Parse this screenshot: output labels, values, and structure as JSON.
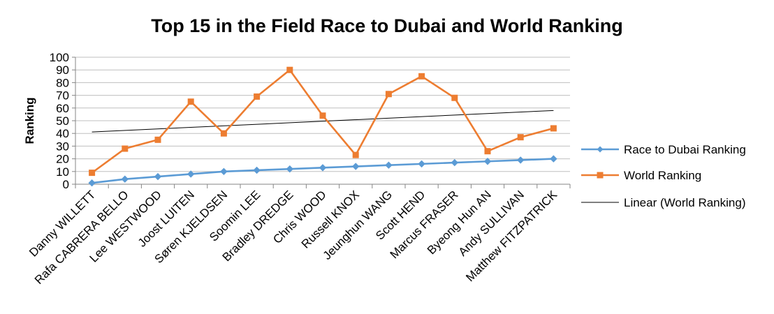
{
  "chart_data": {
    "type": "line",
    "title": "Top 15 in the Field Race to Dubai and World Ranking",
    "xlabel": "",
    "ylabel": "Ranking",
    "ylim": [
      0,
      100
    ],
    "ytick_step": 10,
    "grid": true,
    "legend_position": "right",
    "categories": [
      "Danny WILLETT",
      "Rafa CABRERA BELLO",
      "Lee WESTWOOD",
      "Joost LUITEN",
      "Søren KJELDSEN",
      "Soomin LEE",
      "Bradley DREDGE",
      "Chris WOOD",
      "Russell KNOX",
      "Jeunghun WANG",
      "Scott HEND",
      "Marcus FRASER",
      "Byeong Hun AN",
      "Andy SULLIVAN",
      "Matthew FITZPATRICK"
    ],
    "series": [
      {
        "name": "Race to Dubai Ranking",
        "color": "#5B9BD5",
        "marker": "diamond",
        "values": [
          1,
          4,
          6,
          8,
          10,
          11,
          12,
          13,
          14,
          15,
          16,
          17,
          18,
          19,
          20
        ]
      },
      {
        "name": "World Ranking",
        "color": "#ED7D31",
        "marker": "square",
        "values": [
          9,
          28,
          35,
          65,
          40,
          69,
          90,
          54,
          23,
          71,
          85,
          68,
          26,
          37,
          44
        ]
      }
    ],
    "trendline": {
      "name": "Linear (World Ranking)",
      "color": "#000000",
      "of_series": "World Ranking",
      "type": "linear"
    }
  }
}
